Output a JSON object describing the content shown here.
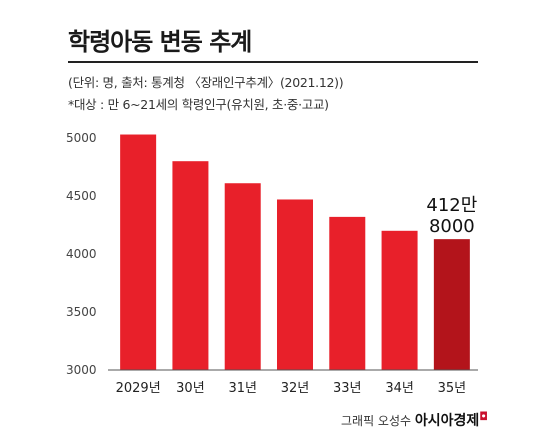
{
  "header": {
    "title": "학령아동 변동 추계",
    "note_source": "(단위: 명, 출처: 통계청 〈장래인구추계〉(2021.12))",
    "note_target": "*대상 : 만 6~21세의 학령인구(유치원, 초·중·고교)"
  },
  "chart_data": {
    "type": "bar",
    "categories": [
      "2029년",
      "30년",
      "31년",
      "32년",
      "33년",
      "34년",
      "35년"
    ],
    "values": [
      5030,
      4800,
      4610,
      4470,
      4320,
      4200,
      4128
    ],
    "ylim": [
      3000,
      5000
    ],
    "yticks": [
      3000,
      3500,
      4000,
      4500,
      5000
    ],
    "title": "학령아동 변동 추계",
    "xlabel": "",
    "ylabel": "",
    "grid": false,
    "bar_color": "#e8202a",
    "highlight_color": "#b3141b",
    "highlight_index": 6,
    "annotations": [
      {
        "index": 6,
        "line1": "412만",
        "line2": "8000"
      }
    ]
  },
  "credit": {
    "author": "그래픽 오성수",
    "brand": "아시아경제"
  }
}
